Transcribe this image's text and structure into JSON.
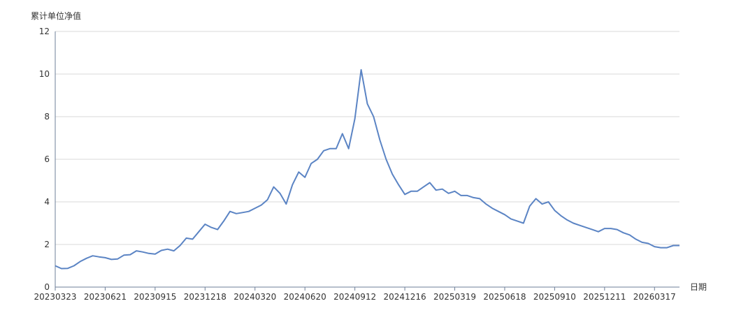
{
  "chart_data": {
    "type": "line",
    "y_axis_label": "累计单位净值",
    "x_axis_label": "日期",
    "categories": [
      "20230323",
      null,
      null,
      null,
      null,
      null,
      null,
      null,
      "20230621",
      null,
      null,
      null,
      null,
      null,
      null,
      null,
      "20230915",
      null,
      null,
      null,
      null,
      null,
      null,
      null,
      "20231218",
      null,
      null,
      null,
      null,
      null,
      null,
      null,
      "20240320",
      null,
      null,
      null,
      null,
      null,
      null,
      null,
      "20240620",
      null,
      null,
      null,
      null,
      null,
      null,
      null,
      "20240912",
      null,
      null,
      null,
      null,
      null,
      null,
      null,
      "20241216",
      null,
      null,
      null,
      null,
      null,
      null,
      null,
      "20250319",
      null,
      null,
      null,
      null,
      null,
      null,
      null,
      "20250618",
      null,
      null,
      null,
      null,
      null,
      null,
      null,
      "20250910",
      null,
      null,
      null,
      null,
      null,
      null,
      null,
      "20251211",
      null,
      null,
      null,
      null,
      null,
      null,
      null,
      "20260317",
      null,
      null,
      null,
      null
    ],
    "series": [
      {
        "name": "累计单位净值",
        "color": "#5b84c4",
        "values": [
          1.0,
          0.87,
          0.88,
          1.0,
          1.2,
          1.35,
          1.47,
          1.42,
          1.38,
          1.3,
          1.32,
          1.5,
          1.52,
          1.7,
          1.65,
          1.58,
          1.55,
          1.72,
          1.78,
          1.7,
          1.95,
          2.3,
          2.25,
          2.6,
          2.95,
          2.8,
          2.7,
          3.1,
          3.55,
          3.45,
          3.5,
          3.55,
          3.7,
          3.85,
          4.1,
          4.7,
          4.4,
          3.9,
          4.8,
          5.4,
          5.15,
          5.8,
          6.0,
          6.4,
          6.5,
          6.5,
          7.2,
          6.5,
          7.9,
          10.2,
          8.6,
          8.0,
          6.9,
          6.0,
          5.3,
          4.8,
          4.35,
          4.5,
          4.5,
          4.7,
          4.9,
          4.55,
          4.6,
          4.4,
          4.5,
          4.3,
          4.3,
          4.2,
          4.15,
          3.9,
          3.7,
          3.55,
          3.4,
          3.2,
          3.1,
          3.0,
          3.8,
          4.15,
          3.9,
          4.0,
          3.6,
          3.35,
          3.15,
          3.0,
          2.9,
          2.8,
          2.7,
          2.6,
          2.75,
          2.75,
          2.7,
          2.55,
          2.45,
          2.25,
          2.1,
          2.05,
          1.9,
          1.85,
          1.85,
          1.95,
          1.95
        ]
      }
    ],
    "ylim": [
      0,
      12
    ],
    "yticks": [
      0,
      2,
      4,
      6,
      8,
      10,
      12
    ],
    "grid": true
  }
}
